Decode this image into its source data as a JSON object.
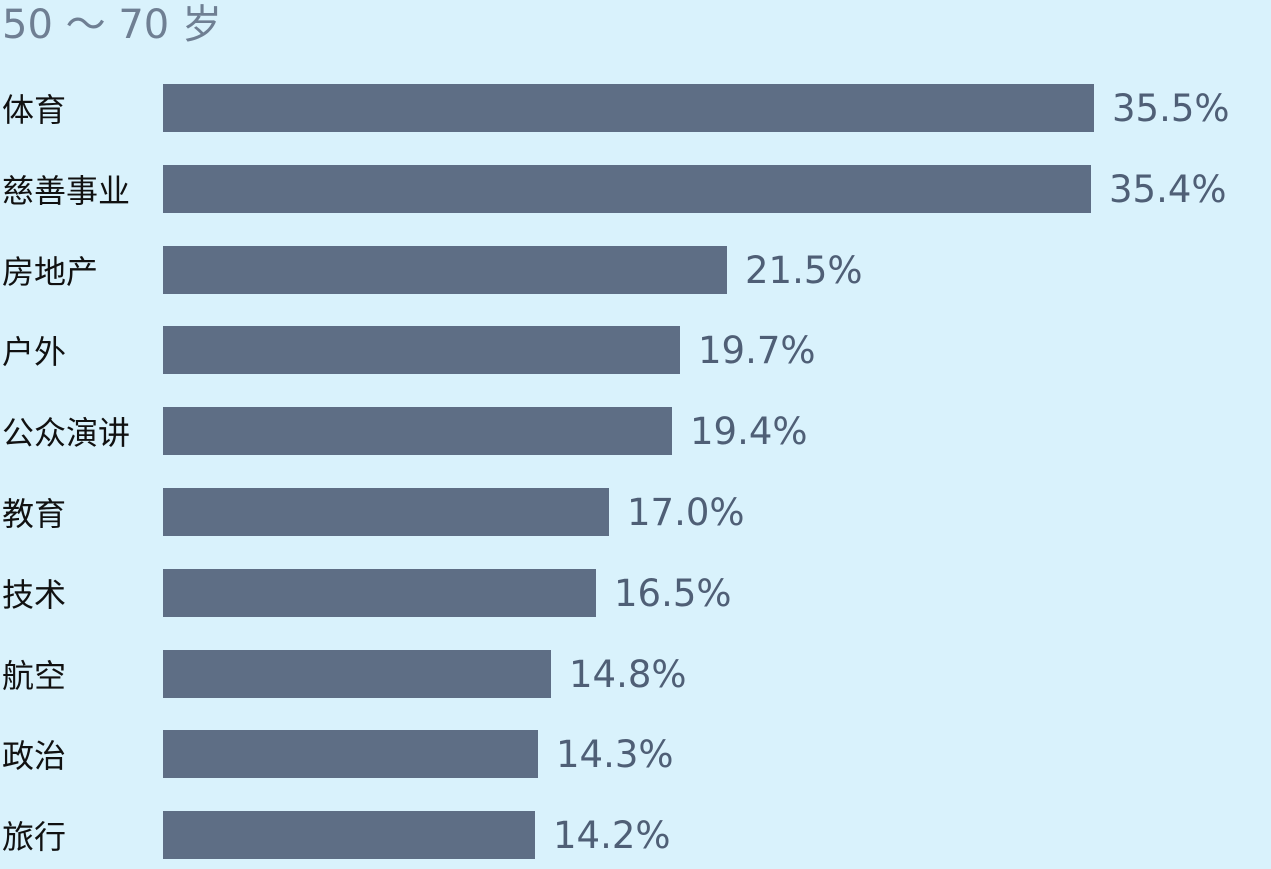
{
  "chart_data": {
    "type": "bar",
    "orientation": "horizontal",
    "title": "50 ～ 70 岁",
    "categories": [
      "体育",
      "慈善事业",
      "房地产",
      "户外",
      "公众演讲",
      "教育",
      "技术",
      "航空",
      "政治",
      "旅行"
    ],
    "values": [
      35.5,
      35.4,
      21.5,
      19.7,
      19.4,
      17.0,
      16.5,
      14.8,
      14.3,
      14.2
    ],
    "value_labels": [
      "35.5%",
      "35.4%",
      "21.5%",
      "19.7%",
      "19.4%",
      "17.0%",
      "16.5%",
      "14.8%",
      "14.3%",
      "14.2%"
    ],
    "grid": false,
    "colors": {
      "background": "#d9f2fc",
      "bar": "#5e6e85",
      "title": "#6f7f93",
      "category_label": "#111111",
      "value_label": "#4f5f76"
    }
  }
}
